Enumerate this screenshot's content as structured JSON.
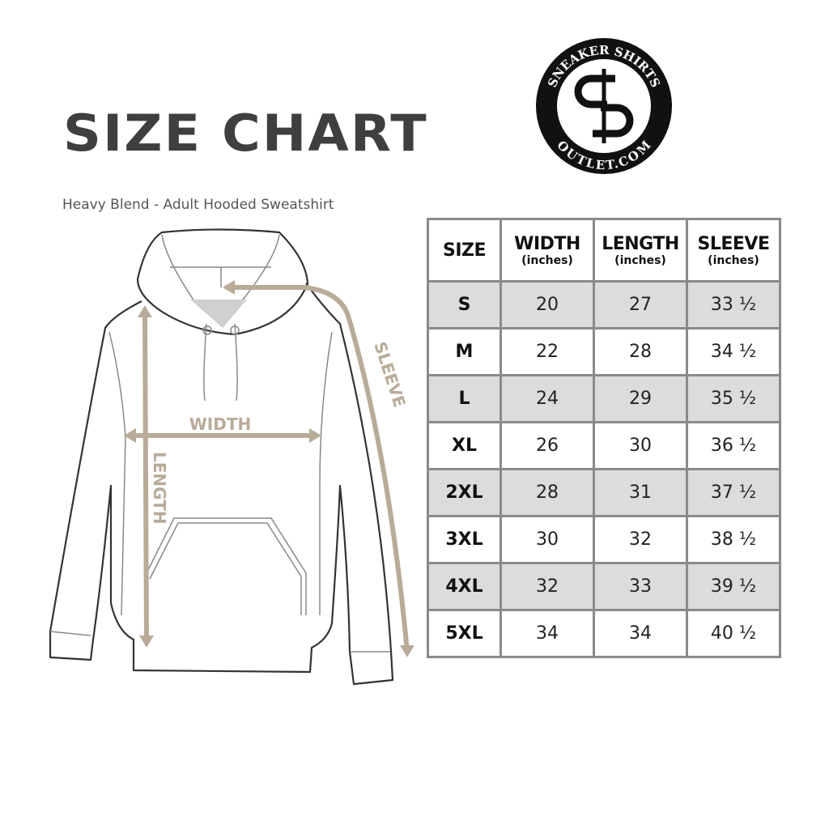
{
  "header": {
    "title": "SIZE CHART",
    "subtitle": "Heavy Blend - Adult Hooded Sweatshirt"
  },
  "logo": {
    "text_top": "SNEAKER SHIRTS",
    "text_bottom": "OUTLET.COM",
    "monogram": "SS"
  },
  "diagram": {
    "labels": {
      "width": "WIDTH",
      "length": "LENGTH",
      "sleeve": "SLEEVE"
    },
    "accent_color": "#b8ab98"
  },
  "table": {
    "columns": [
      {
        "label": "SIZE",
        "unit": ""
      },
      {
        "label": "WIDTH",
        "unit": "(inches)"
      },
      {
        "label": "LENGTH",
        "unit": "(inches)"
      },
      {
        "label": "SLEEVE",
        "unit": "(inches)"
      }
    ],
    "rows": [
      [
        "S",
        "20",
        "27",
        "33 ½"
      ],
      [
        "M",
        "22",
        "28",
        "34 ½"
      ],
      [
        "L",
        "24",
        "29",
        "35 ½"
      ],
      [
        "XL",
        "26",
        "30",
        "36 ½"
      ],
      [
        "2XL",
        "28",
        "31",
        "37 ½"
      ],
      [
        "3XL",
        "30",
        "32",
        "38 ½"
      ],
      [
        "4XL",
        "32",
        "33",
        "39 ½"
      ],
      [
        "5XL",
        "34",
        "34",
        "40 ½"
      ]
    ],
    "shade_color": "#dcdcdc"
  }
}
